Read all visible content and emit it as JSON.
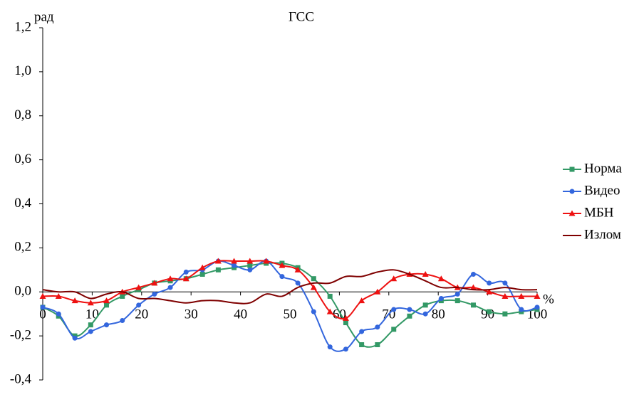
{
  "chart_data": {
    "type": "line",
    "title": "ГСС",
    "ylabel": "рад",
    "xlabel": "%",
    "x": [
      0,
      3.2,
      6.5,
      9.7,
      12.9,
      16.1,
      19.4,
      22.6,
      25.8,
      29,
      32.3,
      35.5,
      38.7,
      41.9,
      45.2,
      48.4,
      51.6,
      54.8,
      58.1,
      61.3,
      64.5,
      67.7,
      71,
      74.2,
      77.4,
      80.6,
      83.9,
      87.1,
      90.3,
      93.5,
      96.8,
      100
    ],
    "series": [
      {
        "name": "Норма",
        "color": "#339966",
        "marker": "square",
        "values": [
          -0.07,
          -0.11,
          -0.2,
          -0.15,
          -0.06,
          -0.02,
          0.01,
          0.04,
          0.05,
          0.06,
          0.08,
          0.1,
          0.11,
          0.12,
          0.13,
          0.13,
          0.11,
          0.06,
          -0.02,
          -0.14,
          -0.24,
          -0.24,
          -0.17,
          -0.11,
          -0.06,
          -0.04,
          -0.04,
          -0.06,
          -0.09,
          -0.1,
          -0.09,
          -0.08
        ]
      },
      {
        "name": "Видео",
        "color": "#3366dd",
        "marker": "circle",
        "values": [
          -0.07,
          -0.1,
          -0.21,
          -0.18,
          -0.15,
          -0.13,
          -0.06,
          -0.01,
          0.02,
          0.09,
          0.1,
          0.14,
          0.12,
          0.1,
          0.14,
          0.07,
          0.04,
          -0.09,
          -0.25,
          -0.26,
          -0.18,
          -0.16,
          -0.08,
          -0.08,
          -0.1,
          -0.03,
          -0.01,
          0.08,
          0.04,
          0.04,
          -0.08,
          -0.07
        ]
      },
      {
        "name": "МБН",
        "color": "#ee1111",
        "marker": "triangle",
        "values": [
          -0.02,
          -0.02,
          -0.04,
          -0.05,
          -0.04,
          0.0,
          0.02,
          0.04,
          0.06,
          0.06,
          0.11,
          0.14,
          0.14,
          0.14,
          0.14,
          0.12,
          0.1,
          0.02,
          -0.09,
          -0.12,
          -0.04,
          0.0,
          0.06,
          0.08,
          0.08,
          0.06,
          0.02,
          0.02,
          0.0,
          -0.02,
          -0.02,
          -0.02
        ]
      },
      {
        "name": "Излом",
        "color": "#7f0000",
        "marker": "none",
        "values": [
          0.01,
          0.0,
          0.0,
          -0.03,
          -0.01,
          0.0,
          -0.03,
          -0.03,
          -0.04,
          -0.05,
          -0.04,
          -0.04,
          -0.05,
          -0.05,
          -0.01,
          -0.02,
          0.02,
          0.04,
          0.04,
          0.07,
          0.07,
          0.09,
          0.1,
          0.08,
          0.05,
          0.02,
          0.02,
          0.01,
          0.01,
          0.02,
          0.01,
          0.01
        ]
      }
    ],
    "xlim": [
      0,
      100
    ],
    "xticks": [
      0,
      10,
      20,
      30,
      40,
      50,
      60,
      70,
      80,
      90,
      100
    ],
    "ylim": [
      -0.4,
      1.2
    ],
    "yticks": [
      {
        "value": -0.4,
        "label": "-0,4"
      },
      {
        "value": -0.2,
        "label": "-0,2"
      },
      {
        "value": 0,
        "label": "0,0"
      },
      {
        "value": 0.2,
        "label": "0,2"
      },
      {
        "value": 0.4,
        "label": "0,4"
      },
      {
        "value": 0.6,
        "label": "0,6"
      },
      {
        "value": 0.8,
        "label": "0,8"
      },
      {
        "value": 1.0,
        "label": "1,0"
      },
      {
        "value": 1.2,
        "label": "1,2"
      }
    ],
    "grid": false,
    "legend": "right"
  }
}
